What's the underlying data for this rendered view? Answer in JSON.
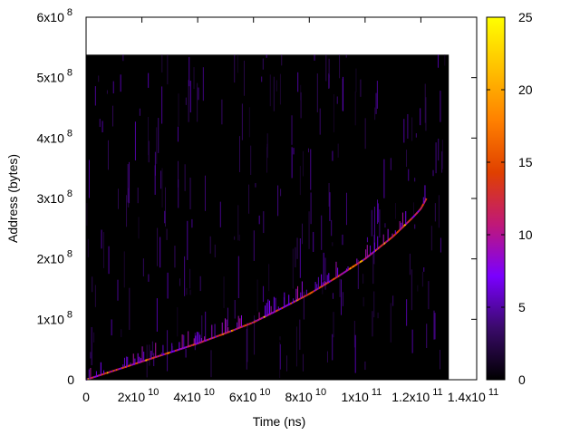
{
  "chart_data": {
    "type": "heatmap",
    "xlabel": "Time (ns)",
    "ylabel": "Address (bytes)",
    "xlim": [
      0,
      140000000000
    ],
    "ylim": [
      0,
      600000000
    ],
    "x_ticks": [
      {
        "value": 0,
        "base": "0",
        "exp": ""
      },
      {
        "value": 20000000000,
        "base": "2x10",
        "exp": "10"
      },
      {
        "value": 40000000000,
        "base": "4x10",
        "exp": "10"
      },
      {
        "value": 60000000000,
        "base": "6x10",
        "exp": "10"
      },
      {
        "value": 80000000000,
        "base": "8x10",
        "exp": "10"
      },
      {
        "value": 100000000000,
        "base": "1x10",
        "exp": "11"
      },
      {
        "value": 120000000000,
        "base": "1.2x10",
        "exp": "11"
      },
      {
        "value": 140000000000,
        "base": "1.4x10",
        "exp": "11"
      }
    ],
    "y_ticks": [
      {
        "value": 0,
        "base": "0",
        "exp": ""
      },
      {
        "value": 100000000,
        "base": "1x10",
        "exp": "8"
      },
      {
        "value": 200000000,
        "base": "2x10",
        "exp": "8"
      },
      {
        "value": 300000000,
        "base": "3x10",
        "exp": "8"
      },
      {
        "value": 400000000,
        "base": "4x10",
        "exp": "8"
      },
      {
        "value": 500000000,
        "base": "5x10",
        "exp": "8"
      },
      {
        "value": 600000000,
        "base": "6x10",
        "exp": "8"
      }
    ],
    "data_extent": {
      "x": [
        0,
        130000000000
      ],
      "y": [
        0,
        538000000
      ]
    },
    "background_value": 0,
    "colorbar": {
      "range": [
        0,
        25
      ],
      "ticks": [
        0,
        5,
        10,
        15,
        20,
        25
      ],
      "colormap": [
        "#000000",
        "#3a0a6a",
        "#7a00ff",
        "#c01878",
        "#e04000",
        "#ff8000",
        "#ffc000",
        "#ffff00"
      ]
    },
    "trend": [
      {
        "x": 0,
        "y": 0
      },
      {
        "x": 10000000000,
        "y": 15000000
      },
      {
        "x": 20000000000,
        "y": 30000000
      },
      {
        "x": 30000000000,
        "y": 45000000
      },
      {
        "x": 40000000000,
        "y": 60000000
      },
      {
        "x": 50000000000,
        "y": 77000000
      },
      {
        "x": 60000000000,
        "y": 95000000
      },
      {
        "x": 70000000000,
        "y": 118000000
      },
      {
        "x": 80000000000,
        "y": 142000000
      },
      {
        "x": 90000000000,
        "y": 170000000
      },
      {
        "x": 100000000000,
        "y": 200000000
      },
      {
        "x": 110000000000,
        "y": 237000000
      },
      {
        "x": 117000000000,
        "y": 268000000
      },
      {
        "x": 120000000000,
        "y": 283000000
      },
      {
        "x": 122000000000,
        "y": 300000000
      }
    ]
  }
}
